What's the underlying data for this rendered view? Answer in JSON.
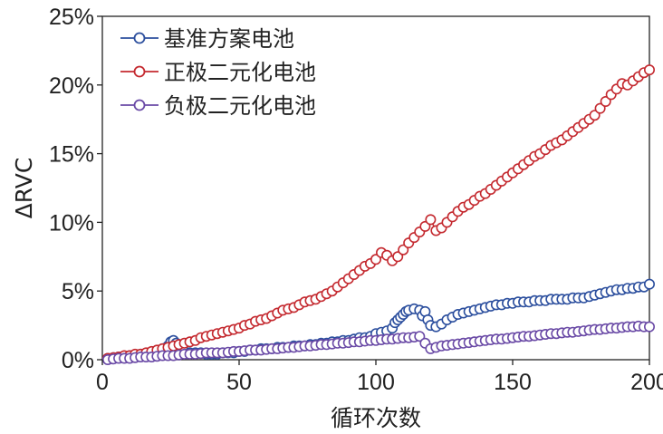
{
  "chart_data": {
    "type": "scatter",
    "title": "",
    "xlabel": "循环次数",
    "ylabel": "ΔRVC",
    "xlim": [
      0,
      200
    ],
    "ylim": [
      0,
      25
    ],
    "xticks": [
      "0",
      "50",
      "100",
      "150",
      "200"
    ],
    "yticks": [
      "0%",
      "5%",
      "10%",
      "15%",
      "20%",
      "25%"
    ],
    "legend_position": "top-left",
    "series": [
      {
        "name": "基准方案电池",
        "color": "#2c4f9e",
        "x": [
          2,
          4,
          6,
          8,
          10,
          12,
          14,
          16,
          18,
          20,
          22,
          24,
          25,
          26,
          27,
          28,
          30,
          32,
          34,
          36,
          38,
          40,
          42,
          44,
          46,
          48,
          50,
          52,
          54,
          56,
          58,
          60,
          62,
          64,
          66,
          68,
          70,
          72,
          74,
          76,
          78,
          80,
          82,
          84,
          86,
          88,
          90,
          92,
          94,
          96,
          98,
          100,
          102,
          104,
          106,
          107,
          108,
          109,
          110,
          111,
          112,
          114,
          116,
          117,
          118,
          119,
          120,
          122,
          124,
          126,
          128,
          130,
          132,
          134,
          136,
          138,
          140,
          142,
          144,
          146,
          148,
          150,
          152,
          154,
          156,
          158,
          160,
          162,
          164,
          166,
          168,
          170,
          172,
          174,
          176,
          178,
          180,
          182,
          184,
          186,
          188,
          190,
          192,
          194,
          196,
          198,
          200
        ],
        "y": [
          0.1,
          0.15,
          0.2,
          0.25,
          0.3,
          0.35,
          0.4,
          0.45,
          0.5,
          0.6,
          0.8,
          1.0,
          1.3,
          1.4,
          1.2,
          0.8,
          0.6,
          0.5,
          0.5,
          0.5,
          0.4,
          0.4,
          0.4,
          0.5,
          0.5,
          0.5,
          0.6,
          0.6,
          0.7,
          0.7,
          0.8,
          0.8,
          0.8,
          0.9,
          0.9,
          0.9,
          1.0,
          1.0,
          1.0,
          1.1,
          1.1,
          1.2,
          1.2,
          1.3,
          1.3,
          1.4,
          1.4,
          1.5,
          1.6,
          1.6,
          1.7,
          1.9,
          2.0,
          2.1,
          2.3,
          2.7,
          2.9,
          3.1,
          3.3,
          3.5,
          3.6,
          3.7,
          3.6,
          3.2,
          3.5,
          2.9,
          2.5,
          2.4,
          2.6,
          2.9,
          3.1,
          3.3,
          3.4,
          3.5,
          3.6,
          3.7,
          3.8,
          3.9,
          4.0,
          4.0,
          4.1,
          4.1,
          4.2,
          4.2,
          4.2,
          4.3,
          4.3,
          4.3,
          4.4,
          4.4,
          4.4,
          4.4,
          4.5,
          4.5,
          4.5,
          4.6,
          4.7,
          4.8,
          4.9,
          5.0,
          5.1,
          5.1,
          5.2,
          5.2,
          5.3,
          5.3,
          5.5
        ]
      },
      {
        "name": "正极二元化电池",
        "color": "#c4292f",
        "x": [
          2,
          4,
          6,
          8,
          10,
          12,
          14,
          16,
          18,
          20,
          22,
          24,
          26,
          28,
          30,
          32,
          34,
          36,
          38,
          40,
          42,
          44,
          46,
          48,
          50,
          52,
          54,
          56,
          58,
          60,
          62,
          64,
          66,
          68,
          70,
          72,
          74,
          76,
          78,
          80,
          82,
          84,
          86,
          88,
          90,
          92,
          94,
          96,
          98,
          100,
          102,
          104,
          106,
          108,
          110,
          112,
          114,
          116,
          118,
          120,
          122,
          124,
          126,
          128,
          130,
          132,
          134,
          136,
          138,
          140,
          142,
          144,
          146,
          148,
          150,
          152,
          154,
          156,
          158,
          160,
          162,
          164,
          166,
          168,
          170,
          172,
          174,
          176,
          178,
          180,
          182,
          184,
          186,
          188,
          190,
          192,
          194,
          196,
          198,
          200
        ],
        "y": [
          0.1,
          0.15,
          0.2,
          0.3,
          0.3,
          0.4,
          0.4,
          0.5,
          0.6,
          0.7,
          0.8,
          0.9,
          1.0,
          1.1,
          1.2,
          1.3,
          1.4,
          1.6,
          1.7,
          1.8,
          1.9,
          2.0,
          2.1,
          2.2,
          2.3,
          2.5,
          2.6,
          2.8,
          2.9,
          3.0,
          3.2,
          3.4,
          3.6,
          3.7,
          3.8,
          4.0,
          4.2,
          4.3,
          4.4,
          4.6,
          4.8,
          5.0,
          5.3,
          5.6,
          5.9,
          6.2,
          6.5,
          6.8,
          7.0,
          7.3,
          7.8,
          7.6,
          7.2,
          7.5,
          8.0,
          8.5,
          8.9,
          9.3,
          9.7,
          10.2,
          9.4,
          9.6,
          10.0,
          10.4,
          10.8,
          11.1,
          11.3,
          11.6,
          11.9,
          12.1,
          12.4,
          12.7,
          13.0,
          13.3,
          13.6,
          13.9,
          14.2,
          14.5,
          14.8,
          15.0,
          15.3,
          15.6,
          15.8,
          16.0,
          16.3,
          16.6,
          16.9,
          17.2,
          17.5,
          17.8,
          18.3,
          18.8,
          19.3,
          19.7,
          20.1,
          20.0,
          20.3,
          20.6,
          20.9,
          21.1
        ]
      },
      {
        "name": "负极二元化电池",
        "color": "#6a4aa6",
        "x": [
          2,
          4,
          6,
          8,
          10,
          12,
          14,
          16,
          18,
          20,
          22,
          24,
          26,
          28,
          30,
          32,
          34,
          36,
          38,
          40,
          42,
          44,
          46,
          48,
          50,
          52,
          54,
          56,
          58,
          60,
          62,
          64,
          66,
          68,
          70,
          72,
          74,
          76,
          78,
          80,
          82,
          84,
          86,
          88,
          90,
          92,
          94,
          96,
          98,
          100,
          102,
          104,
          106,
          108,
          110,
          112,
          114,
          116,
          118,
          120,
          122,
          124,
          126,
          128,
          130,
          132,
          134,
          136,
          138,
          140,
          142,
          144,
          146,
          148,
          150,
          152,
          154,
          156,
          158,
          160,
          162,
          164,
          166,
          168,
          170,
          172,
          174,
          176,
          178,
          180,
          182,
          184,
          186,
          188,
          190,
          192,
          194,
          196,
          198,
          200
        ],
        "y": [
          0.0,
          0.05,
          0.1,
          0.1,
          0.1,
          0.15,
          0.2,
          0.2,
          0.2,
          0.25,
          0.3,
          0.3,
          0.3,
          0.35,
          0.4,
          0.4,
          0.4,
          0.45,
          0.5,
          0.5,
          0.5,
          0.5,
          0.55,
          0.6,
          0.6,
          0.65,
          0.7,
          0.7,
          0.7,
          0.75,
          0.8,
          0.8,
          0.85,
          0.9,
          0.9,
          0.95,
          1.0,
          1.0,
          1.05,
          1.1,
          1.1,
          1.15,
          1.2,
          1.2,
          1.25,
          1.3,
          1.3,
          1.35,
          1.4,
          1.4,
          1.45,
          1.5,
          1.5,
          1.55,
          1.6,
          1.6,
          1.65,
          1.7,
          1.2,
          0.8,
          0.9,
          1.0,
          1.05,
          1.1,
          1.15,
          1.2,
          1.25,
          1.3,
          1.35,
          1.4,
          1.45,
          1.5,
          1.5,
          1.55,
          1.6,
          1.65,
          1.7,
          1.7,
          1.75,
          1.8,
          1.85,
          1.9,
          1.9,
          1.95,
          2.0,
          2.0,
          2.05,
          2.1,
          2.15,
          2.2,
          2.2,
          2.25,
          2.3,
          2.3,
          2.35,
          2.4,
          2.4,
          2.45,
          2.4,
          2.4
        ]
      }
    ]
  }
}
